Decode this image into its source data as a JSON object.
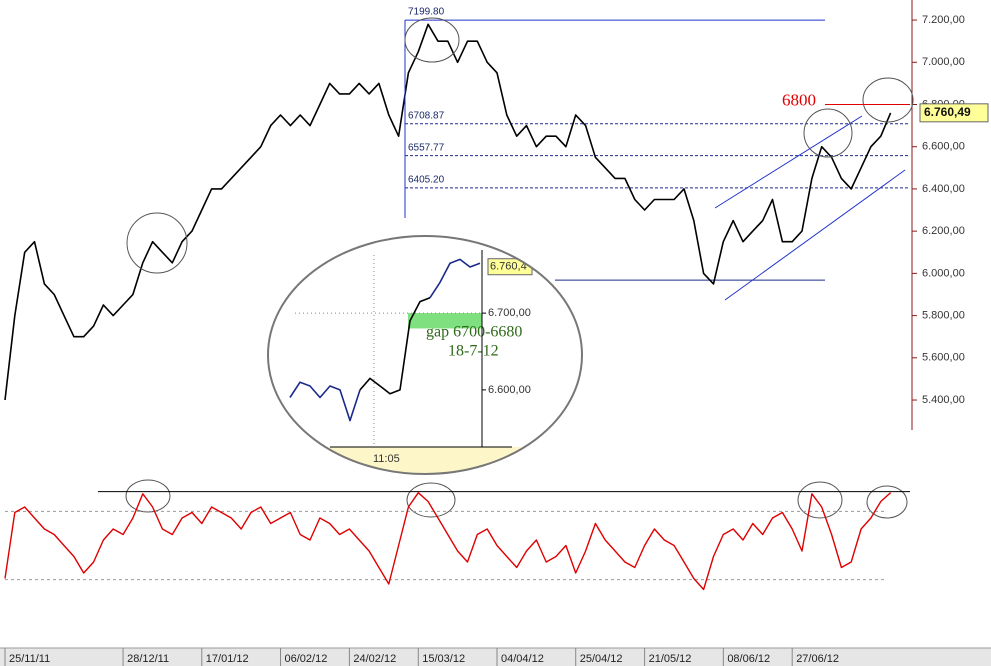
{
  "chart_data": [
    {
      "type": "line",
      "categories": [
        "25/11/11",
        null,
        null,
        null,
        null,
        null,
        null,
        null,
        null,
        null,
        null,
        null,
        "28/12/11",
        null,
        null,
        null,
        null,
        null,
        null,
        null,
        "17/01/12",
        null,
        null,
        null,
        null,
        null,
        null,
        null,
        "06/02/12",
        null,
        null,
        null,
        null,
        null,
        null,
        "24/02/12",
        null,
        null,
        null,
        null,
        null,
        null,
        "15/03/12",
        null,
        null,
        null,
        null,
        null,
        null,
        null,
        "04/04/12",
        null,
        null,
        null,
        null,
        null,
        null,
        null,
        "25/04/12",
        null,
        null,
        null,
        null,
        null,
        null,
        "21/05/12",
        null,
        null,
        null,
        null,
        null,
        null,
        null,
        "08/06/12",
        null,
        null,
        null,
        null,
        null,
        null,
        "27/06/12",
        null,
        null,
        null,
        null,
        null,
        null,
        null,
        null,
        null,
        null,
        null
      ],
      "series": [
        {
          "color": "#000000",
          "values": [
            5400,
            5800,
            6100,
            6150,
            5950,
            5900,
            5800,
            5700,
            5700,
            5750,
            5850,
            5800,
            5850,
            5900,
            6050,
            6150,
            6100,
            6050,
            6150,
            6200,
            6300,
            6400,
            6400,
            6450,
            6500,
            6550,
            6600,
            6700,
            6750,
            6700,
            6750,
            6700,
            6800,
            6900,
            6850,
            6850,
            6900,
            6850,
            6900,
            6750,
            6650,
            6950,
            7050,
            7180,
            7100,
            7100,
            7000,
            7100,
            7100,
            7000,
            6950,
            6750,
            6650,
            6700,
            6600,
            6650,
            6650,
            6600,
            6750,
            6700,
            6550,
            6500,
            6450,
            6450,
            6350,
            6300,
            6350,
            6350,
            6350,
            6400,
            6250,
            6000,
            5950,
            6150,
            6250,
            6150,
            6200,
            6250,
            6350,
            6150,
            6150,
            6200,
            6450,
            6600,
            6550,
            6450,
            6400,
            6500,
            6600,
            6650,
            6760,
            null
          ]
        }
      ],
      "ylim": [
        5258,
        7295
      ],
      "yticks": [
        {
          "value": 5400,
          "label": "5.400,00"
        },
        {
          "value": 5600,
          "label": "5.600,00"
        },
        {
          "value": 5800,
          "label": "5.800,00"
        },
        {
          "value": 6000,
          "label": "6.000,00"
        },
        {
          "value": 6200,
          "label": "6.200,00"
        },
        {
          "value": 6400,
          "label": "6.400,00"
        },
        {
          "value": 6600,
          "label": "6.600,00"
        },
        {
          "value": 6800,
          "label": "6.800,00"
        },
        {
          "value": 7000,
          "label": "7.000,00"
        },
        {
          "value": 7200,
          "label": "7.200,00"
        }
      ],
      "levels": [
        {
          "value": 7199.8,
          "label": "7199.80"
        },
        {
          "value": 6708.87,
          "label": "6708.87"
        },
        {
          "value": 6557.77,
          "label": "6557.77"
        },
        {
          "value": 6405.2,
          "label": "6405.20"
        }
      ],
      "support": 5968,
      "target": {
        "value": 6800,
        "label": "6800",
        "color": "#e00000"
      },
      "last": {
        "value": 6760.49,
        "label": "6.760,49"
      }
    },
    {
      "type": "line",
      "series": [
        {
          "color": "#e00000",
          "values": [
            15,
            75,
            80,
            70,
            60,
            55,
            45,
            35,
            20,
            30,
            50,
            60,
            55,
            70,
            92,
            80,
            60,
            55,
            70,
            75,
            65,
            80,
            75,
            70,
            60,
            75,
            80,
            65,
            70,
            75,
            55,
            50,
            70,
            65,
            55,
            60,
            50,
            40,
            25,
            10,
            45,
            80,
            93,
            85,
            70,
            55,
            40,
            30,
            55,
            60,
            45,
            35,
            25,
            40,
            50,
            30,
            35,
            45,
            20,
            40,
            65,
            50,
            40,
            30,
            25,
            45,
            60,
            50,
            45,
            30,
            15,
            5,
            35,
            55,
            60,
            50,
            65,
            55,
            70,
            75,
            60,
            40,
            92,
            80,
            55,
            25,
            30,
            60,
            70,
            85,
            93,
            null
          ]
        }
      ],
      "ylim": [
        0,
        100
      ],
      "ref_lines": [
        94,
        76,
        14
      ]
    },
    {
      "type": "line",
      "categories": [
        null,
        null,
        null,
        null,
        null,
        null,
        null,
        null,
        "11:05",
        null,
        null,
        null,
        null,
        null,
        null,
        null,
        null,
        null,
        null,
        null
      ],
      "series": [
        {
          "color": "#1a2a8a",
          "values": [
            6590,
            6610,
            6605,
            6590,
            6605,
            6600,
            6560,
            6600,
            null,
            null,
            null,
            null,
            null,
            null,
            6720,
            6740,
            6765,
            6770,
            6760,
            6765
          ]
        },
        {
          "color": "#000000",
          "values": [
            null,
            null,
            null,
            null,
            null,
            null,
            null,
            6600,
            6615,
            6605,
            6595,
            6600,
            6690,
            6715,
            6720,
            null,
            null,
            null,
            null,
            null
          ]
        }
      ],
      "ylim": [
        6480,
        6790
      ],
      "yticks": [
        {
          "value": 6600,
          "label": "6.600,00"
        },
        {
          "value": 6700,
          "label": "6.700,00"
        }
      ],
      "last": {
        "value": 6760.4,
        "label": "6.760,4"
      },
      "gap": {
        "range": [
          6680,
          6700
        ],
        "label": "gap 6700-6680",
        "date": "18-7-12",
        "color": "#7ee07e"
      }
    }
  ]
}
